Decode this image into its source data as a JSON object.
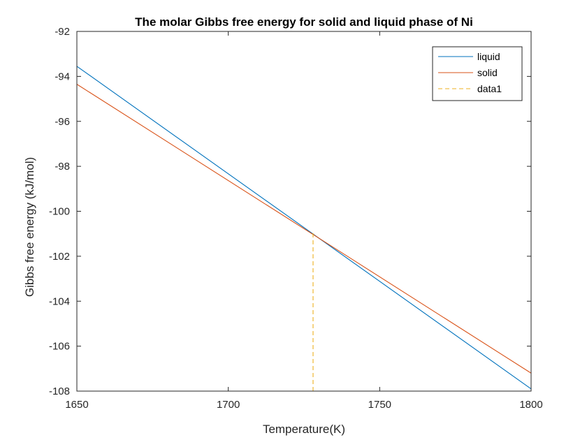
{
  "chart_data": {
    "type": "line",
    "title": "The molar Gibbs free energy for solid and liquid phase of Ni",
    "xlabel": "Temperature(K)",
    "ylabel": "Gibbs free energy (kJ/mol)",
    "xlim": [
      1650,
      1800
    ],
    "ylim": [
      -108,
      -92
    ],
    "xticks": [
      1650,
      1700,
      1750,
      1800
    ],
    "yticks": [
      -108,
      -106,
      -104,
      -102,
      -100,
      -98,
      -96,
      -94,
      -92
    ],
    "xtick_labels": [
      "1650",
      "1700",
      "1750",
      "1800"
    ],
    "ytick_labels": [
      "-108",
      "-106",
      "-104",
      "-102",
      "-100",
      "-98",
      "-96",
      "-94",
      "-92"
    ],
    "grid": false,
    "legend_position": "top-right",
    "series": [
      {
        "name": "liquid",
        "color": "#0072BD",
        "style": "solid",
        "x": [
          1650,
          1800
        ],
        "y": [
          -93.55,
          -107.9
        ]
      },
      {
        "name": "solid",
        "color": "#D95319",
        "style": "solid",
        "x": [
          1650,
          1800
        ],
        "y": [
          -94.35,
          -107.2
        ]
      },
      {
        "name": "data1",
        "color": "#EDB120",
        "style": "dashed",
        "x": [
          1728,
          1728
        ],
        "y": [
          -108,
          -100.9
        ]
      }
    ]
  }
}
